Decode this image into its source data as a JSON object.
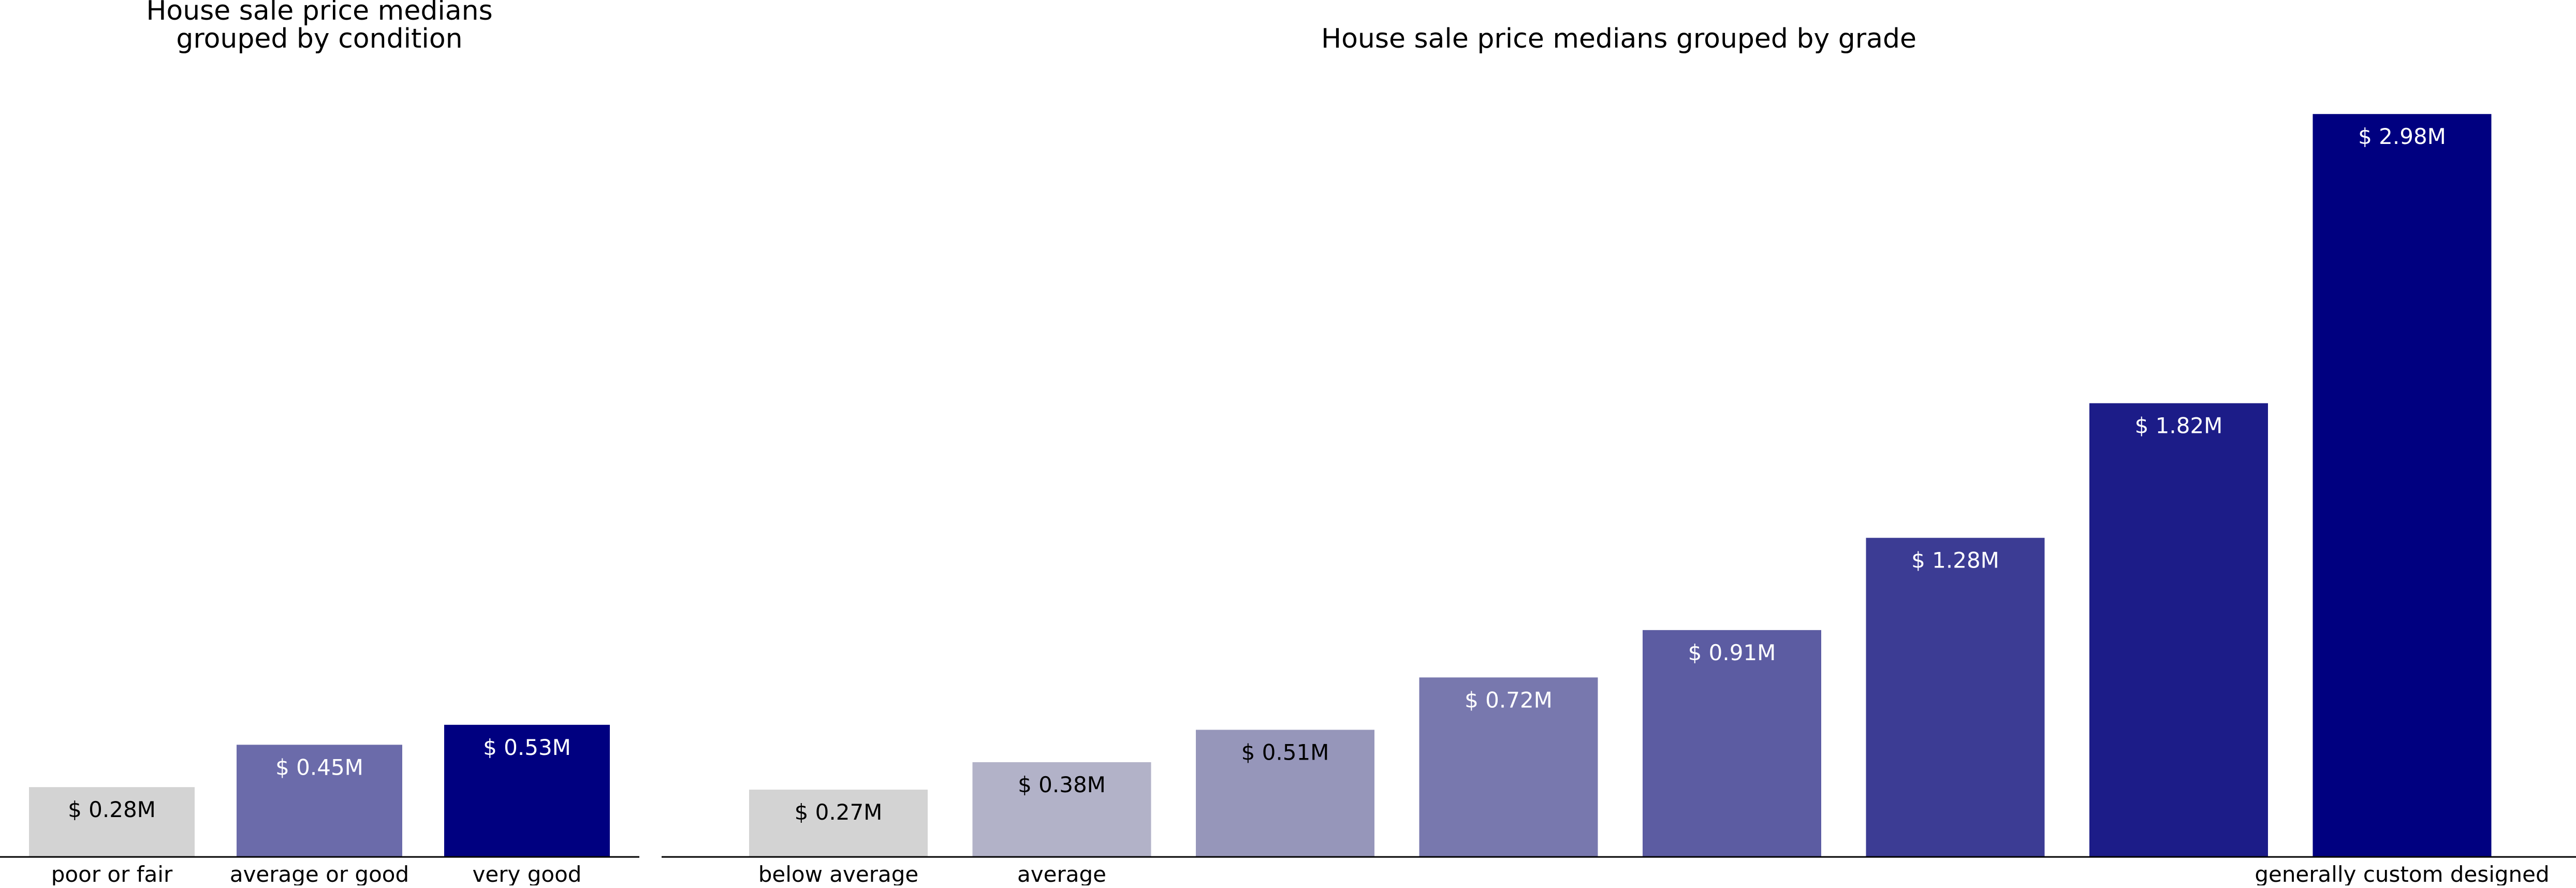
{
  "chart_data": [
    {
      "type": "bar",
      "title_lines": [
        "House sale price medians",
        "grouped by condition"
      ],
      "categories": [
        "poor or fair",
        "average or good",
        "very good"
      ],
      "values": [
        0.28,
        0.45,
        0.53
      ],
      "value_labels": [
        "$ 0.28M",
        "$ 0.45M",
        "$ 0.53M"
      ],
      "colors": [
        "#d3d3d3",
        "#6b6baa",
        "#000080"
      ],
      "label_colors": [
        "#000000",
        "#ffffff",
        "#ffffff"
      ],
      "ylim": [
        0,
        3.13
      ],
      "grid": false,
      "legend": "none"
    },
    {
      "type": "bar",
      "title_lines": [
        "House sale price medians grouped by grade"
      ],
      "categories": [
        "below average",
        "average",
        "",
        "",
        "",
        "",
        "",
        "generally custom designed"
      ],
      "values": [
        0.27,
        0.38,
        0.51,
        0.72,
        0.91,
        1.28,
        1.82,
        2.98
      ],
      "value_labels": [
        "$ 0.27M",
        "$ 0.38M",
        "$ 0.51M",
        "$ 0.72M",
        "$ 0.91M",
        "$ 1.28M",
        "$ 1.82M",
        "$ 2.98M"
      ],
      "colors": [
        "#d3d3d3",
        "#b2b2c8",
        "#9696ba",
        "#7878ae",
        "#5c5ca2",
        "#3c3c94",
        "#1c1c88",
        "#000080"
      ],
      "label_colors": [
        "#000000",
        "#000000",
        "#000000",
        "#ffffff",
        "#ffffff",
        "#ffffff",
        "#ffffff",
        "#ffffff"
      ],
      "ylim": [
        0,
        3.13
      ],
      "grid": false,
      "legend": "none"
    }
  ]
}
